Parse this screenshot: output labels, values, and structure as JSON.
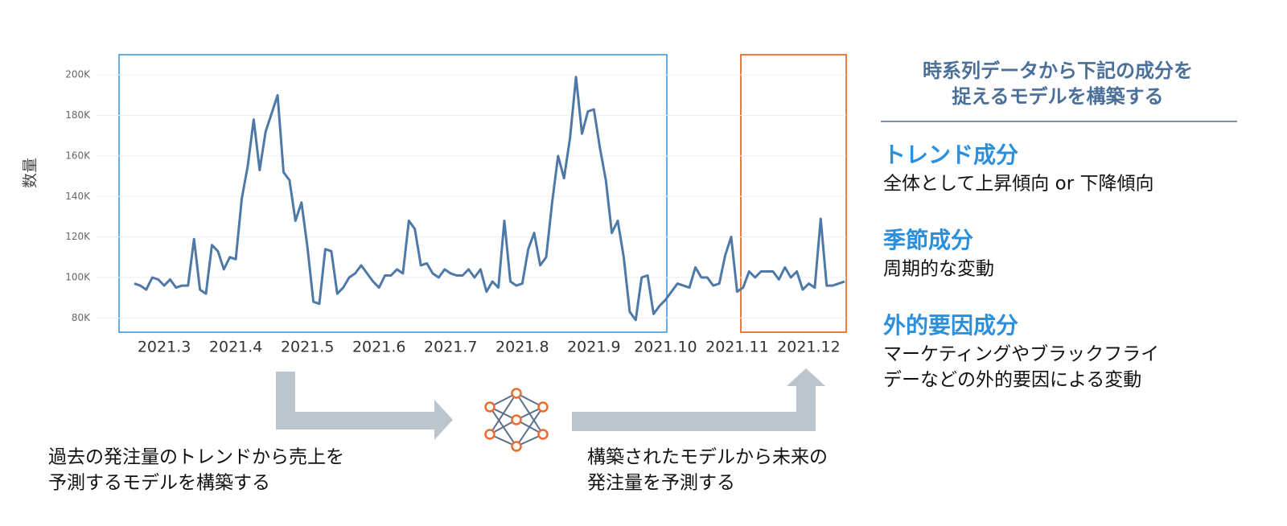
{
  "chart_data": {
    "type": "line",
    "ylabel": "数量",
    "color": "#4e79a7",
    "grid": true,
    "categories": [
      null,
      null,
      null,
      null,
      null,
      "2021.3",
      null,
      null,
      null,
      null,
      null,
      null,
      null,
      null,
      null,
      null,
      null,
      "2021.4",
      null,
      null,
      null,
      null,
      null,
      null,
      null,
      null,
      null,
      null,
      null,
      "2021.5",
      null,
      null,
      null,
      null,
      null,
      null,
      null,
      null,
      null,
      null,
      null,
      "2021.6",
      null,
      null,
      null,
      null,
      null,
      null,
      null,
      null,
      null,
      null,
      null,
      "2021.7",
      null,
      null,
      null,
      null,
      null,
      null,
      null,
      null,
      null,
      null,
      null,
      "2021.8",
      null,
      null,
      null,
      null,
      null,
      null,
      null,
      null,
      null,
      null,
      null,
      "2021.9",
      null,
      null,
      null,
      null,
      null,
      null,
      null,
      null,
      null,
      null,
      null,
      "2021.10",
      null,
      null,
      null,
      null,
      null,
      null,
      null,
      null,
      null,
      null,
      null,
      "2021.11",
      null,
      null,
      null,
      null,
      null,
      null,
      null,
      null,
      null,
      null,
      null,
      "2021.12",
      null,
      null,
      null,
      null,
      null,
      null
    ],
    "values": [
      97000,
      96000,
      94000,
      100000,
      99000,
      96000,
      99000,
      95000,
      96000,
      96000,
      119000,
      94000,
      92000,
      116000,
      113000,
      104000,
      110000,
      109000,
      139000,
      155000,
      178000,
      153000,
      172000,
      181000,
      190000,
      152000,
      148000,
      128000,
      137000,
      115000,
      88000,
      87000,
      114000,
      113000,
      92000,
      95000,
      100000,
      102000,
      106000,
      102000,
      98000,
      95000,
      101000,
      101000,
      104000,
      102000,
      128000,
      124000,
      106000,
      107000,
      102000,
      100000,
      104000,
      102000,
      101000,
      101000,
      104000,
      100000,
      104000,
      93000,
      98000,
      95000,
      128000,
      98000,
      96000,
      97000,
      114000,
      122000,
      106000,
      110000,
      137000,
      160000,
      149000,
      169000,
      199000,
      171000,
      182000,
      183000,
      164000,
      148000,
      122000,
      128000,
      110000,
      83000,
      79000,
      100000,
      101000,
      82000,
      86000,
      89000,
      93000,
      97000,
      96000,
      95000,
      105000,
      100000,
      100000,
      96000,
      97000,
      111000,
      120000,
      93000,
      95000,
      103000,
      100000,
      103000,
      103000,
      103000,
      99000,
      105000,
      100000,
      103000,
      94000,
      97000,
      95000,
      129000,
      96000,
      96000,
      97000,
      98000
    ],
    "ylim": [
      73000,
      210000
    ],
    "yticks": [
      {
        "value": 80000,
        "label": "80K"
      },
      {
        "value": 100000,
        "label": "100K"
      },
      {
        "value": 120000,
        "label": "120K"
      },
      {
        "value": 140000,
        "label": "140K"
      },
      {
        "value": 160000,
        "label": "160K"
      },
      {
        "value": 180000,
        "label": "180K"
      },
      {
        "value": 200000,
        "label": "200K"
      }
    ]
  },
  "panel": {
    "title": [
      "時系列データから下記の成分を",
      "捉えるモデルを構築する"
    ],
    "items": [
      {
        "heading": "トレンド成分",
        "text": [
          "全体として上昇傾向 or 下降傾向"
        ]
      },
      {
        "heading": "季節成分",
        "text": [
          "周期的な変動"
        ]
      },
      {
        "heading": "外的要因成分",
        "text": [
          "マーケティングやブラックフライ",
          "デーなどの外的要因による変動"
        ]
      }
    ]
  },
  "captions": [
    [
      "過去の発注量のトレンドから売上を",
      "予測するモデルを構築する"
    ],
    [
      "構築されたモデルから未来の",
      "発注量を予測する"
    ]
  ]
}
